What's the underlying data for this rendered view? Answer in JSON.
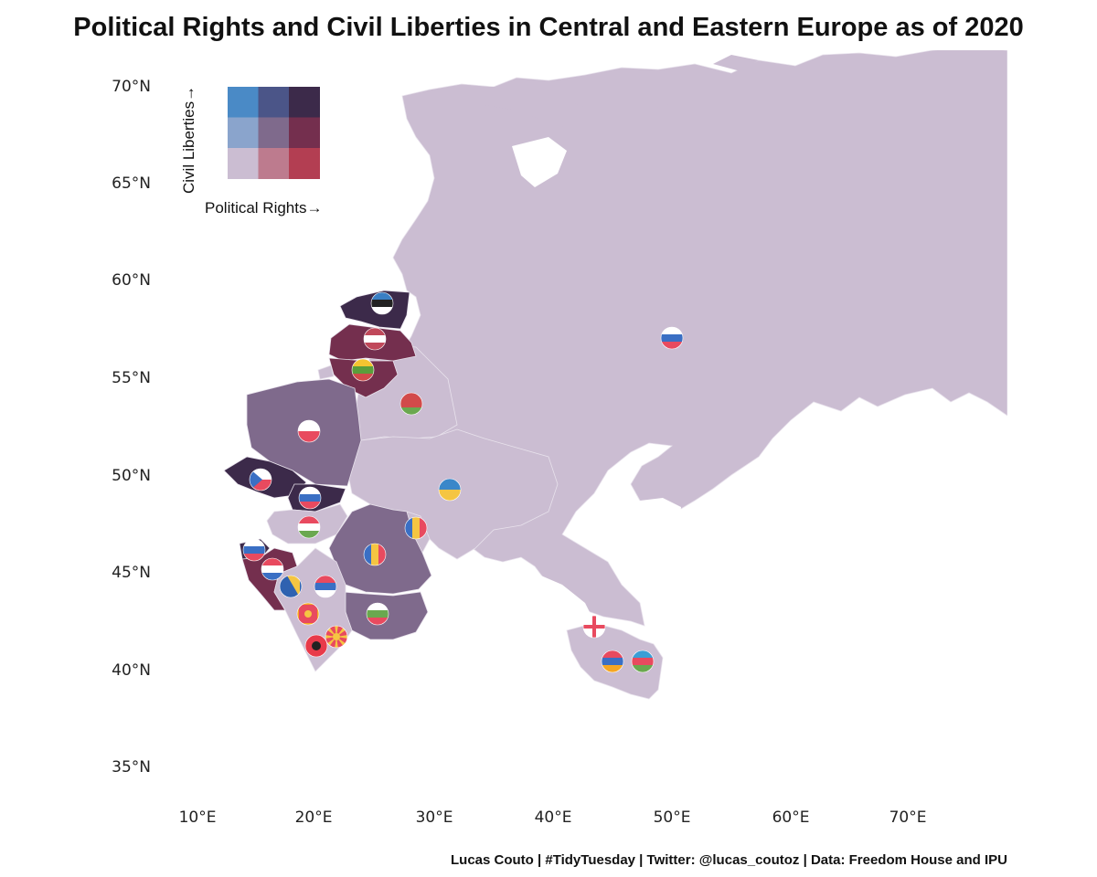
{
  "title": "Political Rights and Civil Liberties in Central and Eastern Europe as of 2020",
  "caption": "Lucas Couto | #TidyTuesday | Twitter: @lucas_coutoz | Data: Freedom House and IPU",
  "axes": {
    "lat_ticks": [
      "70°N",
      "65°N",
      "60°N",
      "55°N",
      "50°N",
      "45°N",
      "40°N",
      "35°N"
    ],
    "lon_ticks": [
      "10°E",
      "20°E",
      "30°E",
      "40°E",
      "50°E",
      "60°E",
      "70°E"
    ],
    "lat_range": [
      33.5,
      71.5
    ],
    "lon_range": [
      7,
      78
    ]
  },
  "legend": {
    "x_label": "Political Rights→",
    "y_label": "Civil Liberties→",
    "colors": [
      [
        "#4a8ac6",
        "#4b5588",
        "#3c2a4a"
      ],
      [
        "#8aa4cc",
        "#7f6a8c",
        "#742f4e"
      ],
      [
        "#cbbdd2",
        "#bd7b8e",
        "#b33e52"
      ]
    ]
  },
  "colors": {
    "default_land": "#cbbdd2",
    "border": "#e8e2ec"
  },
  "countries": [
    {
      "name": "Estonia",
      "flag": "estonia-flag",
      "fill": "#3c2a4a"
    },
    {
      "name": "Latvia",
      "flag": "latvia-flag",
      "fill": "#742f4e"
    },
    {
      "name": "Lithuania",
      "flag": "lithuania-flag",
      "fill": "#742f4e"
    },
    {
      "name": "Poland",
      "flag": "poland-flag",
      "fill": "#7f6a8c"
    },
    {
      "name": "Czechia",
      "flag": "czechia-flag",
      "fill": "#3c2a4a"
    },
    {
      "name": "Slovakia",
      "flag": "slovakia-flag",
      "fill": "#3c2a4a"
    },
    {
      "name": "Hungary",
      "flag": "hungary-flag",
      "fill": "#cbbdd2"
    },
    {
      "name": "Romania",
      "flag": "romania-flag",
      "fill": "#7f6a8c"
    },
    {
      "name": "Bulgaria",
      "flag": "bulgaria-flag",
      "fill": "#7f6a8c"
    },
    {
      "name": "Slovenia",
      "flag": "slovenia-flag",
      "fill": "#3c2a4a"
    },
    {
      "name": "Croatia",
      "flag": "croatia-flag",
      "fill": "#742f4e"
    },
    {
      "name": "Belarus",
      "flag": "belarus-flag",
      "fill": "#cbbdd2"
    },
    {
      "name": "Ukraine",
      "flag": "ukraine-flag",
      "fill": "#cbbdd2"
    },
    {
      "name": "Moldova",
      "flag": "moldova-flag",
      "fill": "#cbbdd2"
    },
    {
      "name": "Russia",
      "flag": "russia-flag",
      "fill": "#cbbdd2"
    },
    {
      "name": "Georgia",
      "flag": "georgia-flag",
      "fill": "#cbbdd2"
    },
    {
      "name": "Armenia",
      "flag": "armenia-flag",
      "fill": "#cbbdd2"
    },
    {
      "name": "Azerbaijan",
      "flag": "azerbaijan-flag",
      "fill": "#cbbdd2"
    },
    {
      "name": "Bosnia and Herzegovina",
      "flag": "bosnia-flag",
      "fill": "#cbbdd2"
    },
    {
      "name": "Serbia",
      "flag": "serbia-flag",
      "fill": "#cbbdd2"
    },
    {
      "name": "Montenegro",
      "flag": "montenegro-flag",
      "fill": "#cbbdd2"
    },
    {
      "name": "Albania",
      "flag": "albania-flag",
      "fill": "#cbbdd2"
    },
    {
      "name": "North Macedonia",
      "flag": "north-macedonia-flag",
      "fill": "#cbbdd2"
    }
  ]
}
